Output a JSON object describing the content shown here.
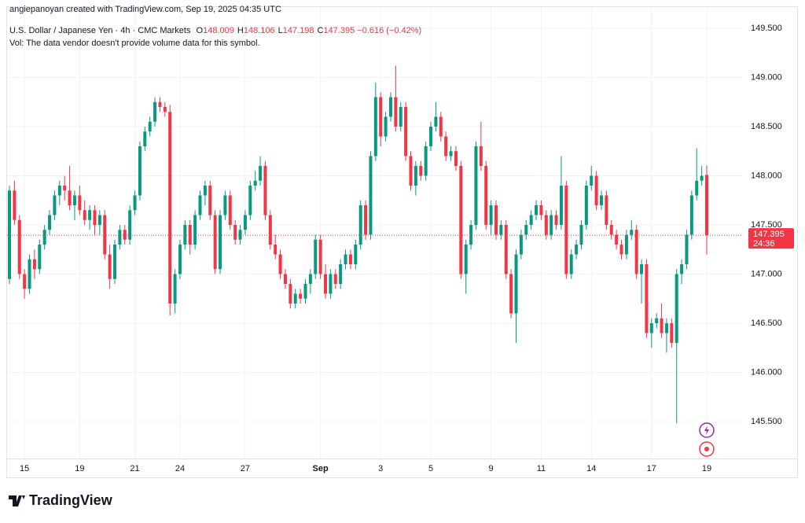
{
  "header": {
    "credit": "angiepanoyan created with TradingView.com, Sep 19, 2025 04:35 UTC"
  },
  "footer": {
    "brand": "TradingView"
  },
  "chart_data": {
    "type": "candlestick",
    "title": "U.S. Dollar / Japanese Yen · 4h · CMC Markets",
    "ohlc_legend": [
      {
        "label": "O",
        "value": 148.009
      },
      {
        "label": "H",
        "value": 148.106
      },
      {
        "label": "L",
        "value": 147.198
      },
      {
        "label": "C",
        "value": 147.395
      }
    ],
    "change": "−0.616 (−0.42%)",
    "note": "Vol: The data vendor doesn't provide volume data for this symbol.",
    "up_color": "#089981",
    "down_color": "#f23645",
    "ylim": [
      144.924,
      149.724
    ],
    "yticks": [
      {
        "value": 145.5,
        "label": "145.500"
      },
      {
        "value": 146,
        "label": "146.000"
      },
      {
        "value": 146.5,
        "label": "146.500"
      },
      {
        "value": 147,
        "label": "147.000"
      },
      {
        "value": 147.5,
        "label": "147.500"
      },
      {
        "value": 148,
        "label": "148.000"
      },
      {
        "value": 148.5,
        "label": "148.500"
      },
      {
        "value": 149,
        "label": "149.000"
      },
      {
        "value": 149.5,
        "label": "149.500"
      }
    ],
    "xticks": [
      {
        "value": 3,
        "label": "15"
      },
      {
        "value": 14,
        "label": "19"
      },
      {
        "value": 25,
        "label": "21"
      },
      {
        "value": 34,
        "label": "24"
      },
      {
        "value": 47,
        "label": "27"
      },
      {
        "value": 62,
        "label": "Sep"
      },
      {
        "value": 74,
        "label": "3"
      },
      {
        "value": 84,
        "label": "5"
      },
      {
        "value": 96,
        "label": "9"
      },
      {
        "value": 106,
        "label": "11"
      },
      {
        "value": 116,
        "label": "14"
      },
      {
        "value": 128,
        "label": "17"
      },
      {
        "value": 139,
        "label": "19"
      }
    ],
    "grid": true,
    "last_price": 147.395,
    "countdown": "24:36",
    "candles": [
      [
        146.95,
        147.9,
        146.9,
        147.85
      ],
      [
        147.85,
        147.95,
        147.5,
        147.55
      ],
      [
        147.55,
        147.6,
        146.95,
        147.0
      ],
      [
        147.0,
        147.05,
        146.75,
        146.85
      ],
      [
        146.85,
        147.2,
        146.8,
        147.15
      ],
      [
        147.15,
        147.25,
        146.95,
        147.05
      ],
      [
        147.05,
        147.35,
        147.0,
        147.3
      ],
      [
        147.3,
        147.5,
        147.25,
        147.45
      ],
      [
        147.45,
        147.65,
        147.4,
        147.6
      ],
      [
        147.6,
        147.85,
        147.55,
        147.8
      ],
      [
        147.8,
        147.95,
        147.7,
        147.9
      ],
      [
        147.9,
        148.0,
        147.75,
        147.85
      ],
      [
        147.85,
        148.1,
        147.65,
        147.7
      ],
      [
        147.7,
        147.85,
        147.55,
        147.8
      ],
      [
        147.8,
        147.9,
        147.6,
        147.65
      ],
      [
        147.65,
        147.75,
        147.5,
        147.55
      ],
      [
        147.55,
        147.7,
        147.45,
        147.65
      ],
      [
        147.65,
        147.7,
        147.4,
        147.5
      ],
      [
        147.5,
        147.65,
        147.4,
        147.6
      ],
      [
        147.6,
        147.65,
        147.15,
        147.2
      ],
      [
        147.2,
        147.3,
        146.85,
        146.95
      ],
      [
        146.95,
        147.35,
        146.9,
        147.3
      ],
      [
        147.3,
        147.5,
        147.25,
        147.45
      ],
      [
        147.45,
        147.5,
        147.3,
        147.35
      ],
      [
        147.35,
        147.7,
        147.3,
        147.65
      ],
      [
        147.65,
        147.85,
        147.6,
        147.8
      ],
      [
        147.8,
        148.35,
        147.75,
        148.3
      ],
      [
        148.3,
        148.5,
        148.25,
        148.45
      ],
      [
        148.45,
        148.6,
        148.4,
        148.55
      ],
      [
        148.55,
        148.8,
        148.5,
        148.75
      ],
      [
        148.75,
        148.8,
        148.65,
        148.7
      ],
      [
        148.7,
        148.75,
        148.6,
        148.65
      ],
      [
        148.65,
        148.72,
        146.58,
        146.7
      ],
      [
        146.7,
        147.05,
        146.6,
        147.0
      ],
      [
        147.0,
        147.35,
        146.95,
        147.3
      ],
      [
        147.3,
        147.55,
        147.25,
        147.5
      ],
      [
        147.5,
        147.55,
        147.2,
        147.3
      ],
      [
        147.3,
        147.65,
        147.25,
        147.6
      ],
      [
        147.6,
        147.85,
        147.55,
        147.8
      ],
      [
        147.8,
        147.95,
        147.7,
        147.9
      ],
      [
        147.9,
        147.95,
        147.55,
        147.6
      ],
      [
        147.6,
        147.65,
        147.0,
        147.05
      ],
      [
        147.05,
        147.65,
        147.0,
        147.6
      ],
      [
        147.6,
        147.85,
        147.55,
        147.8
      ],
      [
        147.8,
        147.85,
        147.45,
        147.5
      ],
      [
        147.5,
        147.55,
        147.3,
        147.35
      ],
      [
        147.35,
        147.5,
        147.3,
        147.45
      ],
      [
        147.45,
        147.65,
        147.4,
        147.6
      ],
      [
        147.6,
        147.95,
        147.55,
        147.9
      ],
      [
        147.9,
        148.05,
        147.85,
        147.95
      ],
      [
        147.95,
        148.2,
        147.9,
        148.1
      ],
      [
        148.1,
        148.15,
        147.55,
        147.6
      ],
      [
        147.6,
        147.65,
        147.25,
        147.3
      ],
      [
        147.3,
        147.4,
        147.15,
        147.2
      ],
      [
        147.2,
        147.25,
        146.95,
        147.0
      ],
      [
        147.0,
        147.05,
        146.85,
        146.9
      ],
      [
        146.9,
        146.95,
        146.65,
        146.7
      ],
      [
        146.7,
        146.85,
        146.65,
        146.8
      ],
      [
        146.8,
        146.85,
        146.7,
        146.75
      ],
      [
        146.75,
        146.95,
        146.7,
        146.9
      ],
      [
        146.9,
        147.05,
        146.8,
        147.0
      ],
      [
        147.0,
        147.4,
        146.95,
        147.35
      ],
      [
        147.35,
        147.4,
        146.95,
        147.0
      ],
      [
        147.0,
        147.1,
        146.75,
        146.8
      ],
      [
        146.8,
        147.05,
        146.75,
        147.0
      ],
      [
        147.0,
        147.05,
        146.85,
        146.9
      ],
      [
        146.9,
        147.15,
        146.85,
        147.1
      ],
      [
        147.1,
        147.25,
        147.05,
        147.2
      ],
      [
        147.2,
        147.25,
        147.05,
        147.1
      ],
      [
        147.1,
        147.35,
        147.05,
        147.3
      ],
      [
        147.3,
        147.75,
        147.25,
        147.7
      ],
      [
        147.7,
        147.75,
        147.35,
        147.4
      ],
      [
        147.4,
        148.25,
        147.35,
        148.2
      ],
      [
        148.2,
        148.95,
        148.15,
        148.8
      ],
      [
        148.8,
        148.85,
        148.3,
        148.4
      ],
      [
        148.4,
        148.65,
        148.35,
        148.6
      ],
      [
        148.6,
        148.85,
        148.55,
        148.8
      ],
      [
        148.8,
        149.12,
        148.45,
        148.5
      ],
      [
        148.5,
        148.75,
        148.45,
        148.7
      ],
      [
        148.7,
        148.75,
        148.15,
        148.2
      ],
      [
        148.2,
        148.25,
        147.85,
        147.9
      ],
      [
        147.9,
        148.15,
        147.8,
        148.1
      ],
      [
        148.1,
        148.15,
        147.95,
        148.0
      ],
      [
        148.0,
        148.35,
        147.95,
        148.3
      ],
      [
        148.3,
        148.55,
        148.25,
        148.5
      ],
      [
        148.5,
        148.75,
        148.45,
        148.6
      ],
      [
        148.6,
        148.65,
        148.35,
        148.4
      ],
      [
        148.4,
        148.45,
        148.15,
        148.2
      ],
      [
        148.2,
        148.3,
        148.15,
        148.25
      ],
      [
        148.25,
        148.3,
        148.05,
        148.1
      ],
      [
        148.1,
        148.15,
        146.95,
        147.0
      ],
      [
        147.0,
        147.35,
        146.8,
        147.3
      ],
      [
        147.3,
        147.55,
        147.25,
        147.5
      ],
      [
        147.5,
        148.35,
        147.45,
        148.3
      ],
      [
        148.3,
        148.55,
        148.05,
        148.1
      ],
      [
        148.1,
        148.15,
        147.45,
        147.5
      ],
      [
        147.5,
        147.75,
        147.4,
        147.7
      ],
      [
        147.7,
        147.75,
        147.35,
        147.4
      ],
      [
        147.4,
        147.55,
        147.35,
        147.5
      ],
      [
        147.5,
        147.55,
        146.95,
        147.0
      ],
      [
        147.0,
        147.05,
        146.55,
        146.6
      ],
      [
        146.6,
        147.25,
        146.3,
        147.2
      ],
      [
        147.2,
        147.45,
        147.15,
        147.4
      ],
      [
        147.4,
        147.55,
        147.35,
        147.5
      ],
      [
        147.5,
        147.65,
        147.45,
        147.6
      ],
      [
        147.6,
        147.75,
        147.55,
        147.7
      ],
      [
        147.7,
        147.75,
        147.55,
        147.6
      ],
      [
        147.6,
        147.65,
        147.35,
        147.4
      ],
      [
        147.4,
        147.65,
        147.35,
        147.6
      ],
      [
        147.6,
        147.65,
        147.45,
        147.5
      ],
      [
        147.5,
        148.2,
        147.45,
        147.9
      ],
      [
        147.9,
        147.95,
        146.95,
        147.0
      ],
      [
        147.0,
        147.25,
        146.95,
        147.2
      ],
      [
        147.2,
        147.35,
        147.15,
        147.3
      ],
      [
        147.3,
        147.55,
        147.25,
        147.5
      ],
      [
        147.5,
        147.95,
        147.45,
        147.9
      ],
      [
        147.9,
        148.1,
        147.85,
        148.0
      ],
      [
        148.0,
        148.05,
        147.65,
        147.7
      ],
      [
        147.7,
        147.85,
        147.65,
        147.8
      ],
      [
        147.8,
        147.85,
        147.45,
        147.5
      ],
      [
        147.5,
        147.55,
        147.35,
        147.4
      ],
      [
        147.4,
        147.45,
        147.25,
        147.3
      ],
      [
        147.3,
        147.35,
        147.15,
        147.2
      ],
      [
        147.2,
        147.45,
        147.15,
        147.4
      ],
      [
        147.4,
        147.55,
        147.35,
        147.45
      ],
      [
        147.45,
        147.5,
        146.95,
        147.0
      ],
      [
        147.0,
        147.15,
        146.7,
        147.1
      ],
      [
        147.1,
        147.15,
        146.35,
        146.4
      ],
      [
        146.4,
        146.55,
        146.25,
        146.5
      ],
      [
        146.5,
        146.6,
        146.45,
        146.55
      ],
      [
        146.55,
        146.7,
        146.35,
        146.4
      ],
      [
        146.4,
        146.55,
        146.2,
        146.5
      ],
      [
        146.5,
        146.55,
        146.25,
        146.3
      ],
      [
        146.3,
        147.05,
        145.48,
        147.0
      ],
      [
        147.0,
        147.15,
        146.9,
        147.1
      ],
      [
        147.1,
        147.45,
        147.05,
        147.4
      ],
      [
        147.4,
        147.85,
        147.35,
        147.8
      ],
      [
        147.8,
        148.28,
        147.75,
        147.95
      ],
      [
        147.95,
        148.1,
        147.9,
        148.0
      ],
      [
        148.009,
        148.106,
        147.198,
        147.395
      ]
    ]
  }
}
